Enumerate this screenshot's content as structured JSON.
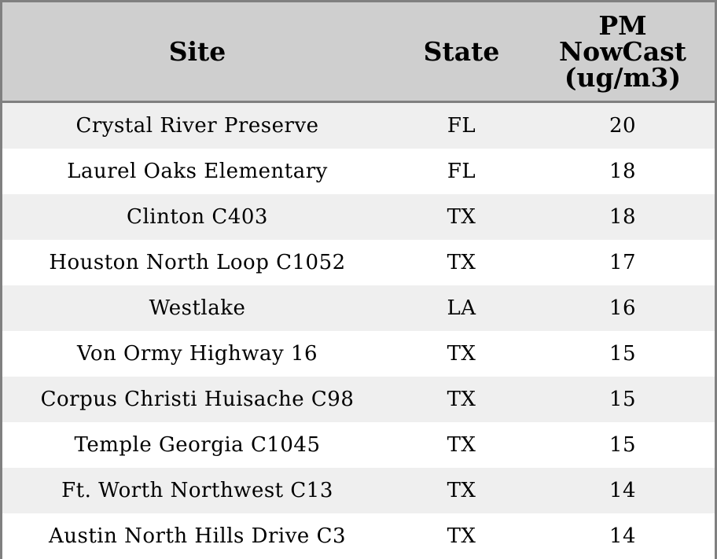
{
  "table": {
    "headers": {
      "site": "Site",
      "state": "State",
      "pm_line1": "PM",
      "pm_line2": "NowCast",
      "pm_line3": "(ug/m3)"
    },
    "rows": [
      {
        "site": "Crystal River Preserve",
        "state": "FL",
        "pm": "20"
      },
      {
        "site": "Laurel Oaks Elementary",
        "state": "FL",
        "pm": "18"
      },
      {
        "site": "Clinton C403",
        "state": "TX",
        "pm": "18"
      },
      {
        "site": "Houston North Loop C1052",
        "state": "TX",
        "pm": "17"
      },
      {
        "site": "Westlake",
        "state": "LA",
        "pm": "16"
      },
      {
        "site": "Von Ormy Highway 16",
        "state": "TX",
        "pm": "15"
      },
      {
        "site": "Corpus Christi Huisache C98",
        "state": "TX",
        "pm": "15"
      },
      {
        "site": "Temple Georgia C1045",
        "state": "TX",
        "pm": "15"
      },
      {
        "site": "Ft. Worth Northwest C13",
        "state": "TX",
        "pm": "14"
      },
      {
        "site": "Austin North Hills Drive C3",
        "state": "TX",
        "pm": "14"
      }
    ]
  },
  "colors": {
    "header_bg": "#cfcfcf",
    "row_alt_bg": "#efefef",
    "border": "#808080"
  }
}
